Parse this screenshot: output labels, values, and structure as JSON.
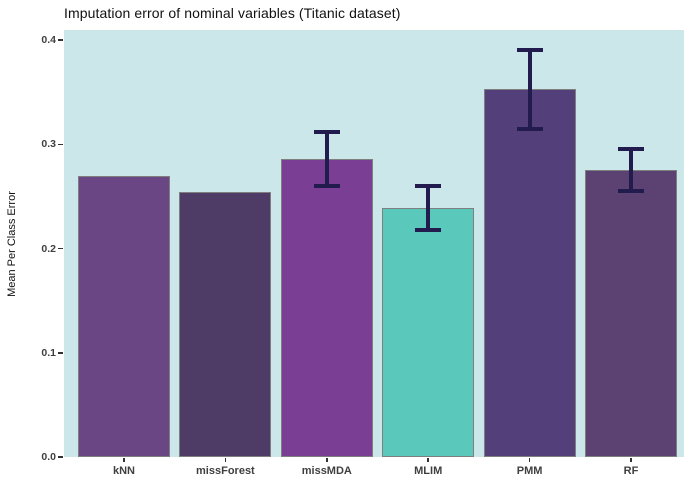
{
  "chart_data": {
    "type": "bar",
    "title": "Imputation error of nominal variables (Titanic dataset)",
    "xlabel": "",
    "ylabel": "Mean Per Class Error",
    "categories": [
      "kNN",
      "missForest",
      "missMDA",
      "MLIM",
      "PMM",
      "RF"
    ],
    "values": [
      0.27,
      0.254,
      0.286,
      0.239,
      0.353,
      0.275
    ],
    "error_bars": [
      null,
      null,
      {
        "ymin": 0.26,
        "ymax": 0.312
      },
      {
        "ymin": 0.218,
        "ymax": 0.26
      },
      {
        "ymin": 0.315,
        "ymax": 0.39
      },
      {
        "ymin": 0.255,
        "ymax": 0.295
      }
    ],
    "bar_colors": [
      "#6b4685",
      "#4f3c66",
      "#7a3f94",
      "#5bc8bc",
      "#53407a",
      "#5b4273"
    ],
    "bar_border_color": "#7f7f7f",
    "error_bar_color": "#221c4e",
    "panel_background": "#cce7e9",
    "figure_background": "#ffffff",
    "yticks": [
      0.0,
      0.1,
      0.2,
      0.3,
      0.4
    ],
    "ytick_labels": [
      "0.0",
      "0.1",
      "0.2",
      "0.3",
      "0.4"
    ],
    "ylim": [
      0,
      0.41
    ],
    "grid": false,
    "legend": "none"
  }
}
